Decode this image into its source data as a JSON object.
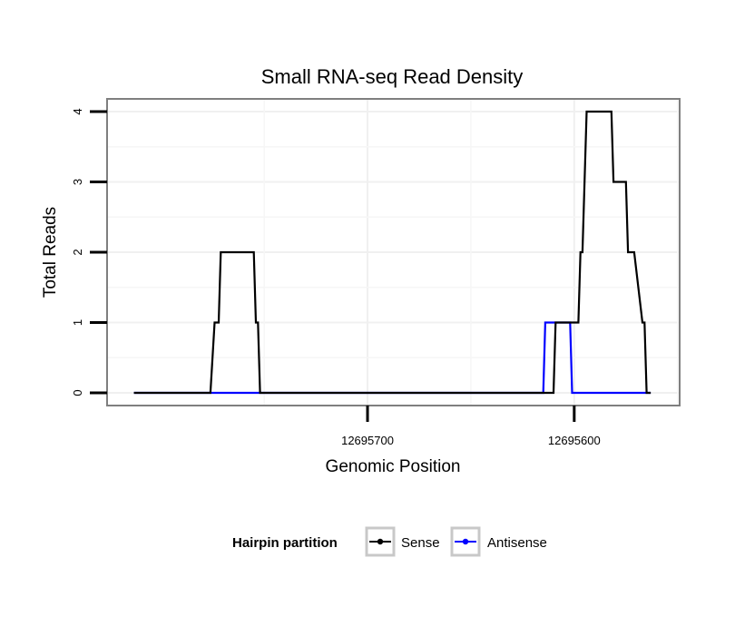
{
  "chart_data": {
    "type": "line",
    "title": "Small RNA-seq Read Density",
    "xlabel": "Genomic Position",
    "ylabel": "Total Reads",
    "x_reversed": true,
    "xlim": [
      12695826,
      12695549
    ],
    "ylim": [
      -0.18,
      4.18
    ],
    "x_ticks": [
      12695700,
      12695600
    ],
    "x_tick_labels": [
      "12695700",
      "12695600"
    ],
    "y_ticks": [
      0,
      1,
      2,
      3,
      4
    ],
    "y_tick_labels": [
      "0",
      "1",
      "2",
      "3",
      "4"
    ],
    "grid": true,
    "series": [
      {
        "name": "Sense",
        "color": "#000000",
        "x": [
          12695813,
          12695776,
          12695774,
          12695773,
          12695772,
          12695771,
          12695770,
          12695755,
          12695754,
          12695753,
          12695752,
          12695751,
          12695750,
          12695610,
          12695609,
          12695598,
          12695597,
          12695596,
          12695594,
          12695582,
          12695581,
          12695575,
          12695574,
          12695572,
          12695571,
          12695567,
          12695566,
          12695565,
          12695564,
          12695563
        ],
        "values": [
          0,
          0,
          1,
          1,
          1,
          2,
          2,
          2,
          1,
          1,
          0,
          0,
          0,
          0,
          1,
          1,
          2,
          2,
          4,
          4,
          3,
          3,
          2,
          2,
          2,
          1,
          1,
          0,
          0,
          0
        ]
      },
      {
        "name": "Antisense",
        "color": "#0000ff",
        "x": [
          12695813,
          12695615,
          12695614,
          12695602,
          12695601,
          12695563
        ],
        "values": [
          0,
          0,
          1,
          1,
          0,
          0
        ]
      }
    ],
    "legend": {
      "title": "Hairpin partition",
      "position": "bottom",
      "items": [
        "Sense",
        "Antisense"
      ]
    }
  }
}
